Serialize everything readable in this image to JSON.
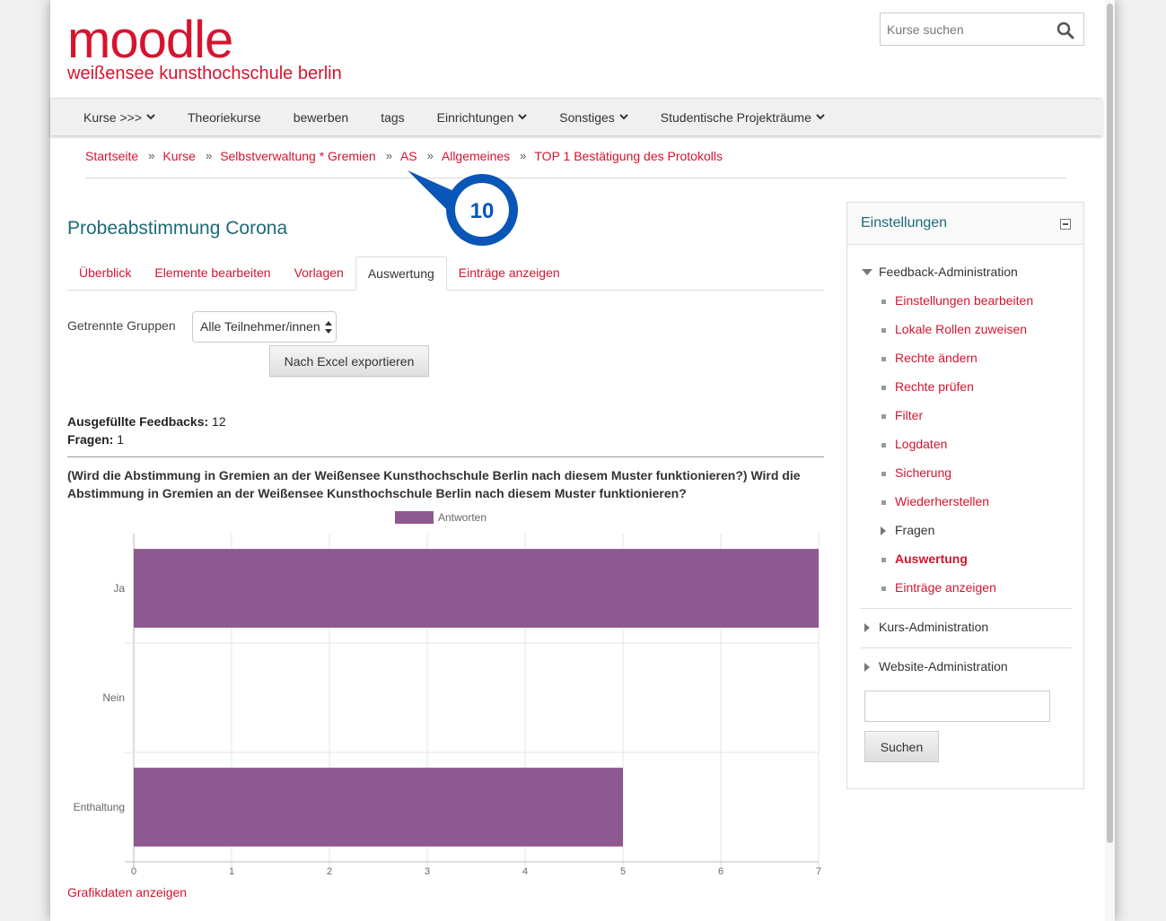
{
  "header": {
    "logo_word": "moodle",
    "logo_subtitle": "weißensee kunsthochschule berlin",
    "search_placeholder": "Kurse suchen"
  },
  "nav": {
    "items": [
      {
        "label": "Kurse >>>",
        "dropdown": true
      },
      {
        "label": "Theoriekurse",
        "dropdown": false
      },
      {
        "label": "bewerben",
        "dropdown": false
      },
      {
        "label": "tags",
        "dropdown": false
      },
      {
        "label": "Einrichtungen",
        "dropdown": true
      },
      {
        "label": "Sonstiges",
        "dropdown": true
      },
      {
        "label": "Studentische Projekträume",
        "dropdown": true
      }
    ]
  },
  "breadcrumb": [
    "Startseite",
    "Kurse",
    "Selbstverwaltung * Gremien",
    "AS",
    "Allgemeines",
    "TOP 1 Bestätigung des Protokolls"
  ],
  "callout": {
    "number": "10"
  },
  "main": {
    "title": "Probeabstimmung Corona",
    "tabs": [
      {
        "label": "Überblick",
        "active": false
      },
      {
        "label": "Elemente bearbeiten",
        "active": false
      },
      {
        "label": "Vorlagen",
        "active": false
      },
      {
        "label": "Auswertung",
        "active": true
      },
      {
        "label": "Einträge anzeigen",
        "active": false
      }
    ],
    "group_label": "Getrennte Gruppen",
    "group_select_value": "Alle Teilnehmer/innen",
    "export_label": "Nach Excel exportieren",
    "feedbacks_label": "Ausgefüllte Feedbacks:",
    "feedbacks_value": "12",
    "questions_label": "Fragen:",
    "questions_value": "1",
    "question_text": "(Wird die Abstimmung in Gremien an der Weißensee Kunsthochschule Berlin nach diesem Muster funktionieren?) Wird die Abstimmung in Gremien an der Weißensee Kunsthochschule Berlin nach diesem Muster funktionieren?",
    "show_data_link": "Grafikdaten anzeigen"
  },
  "chart_data": {
    "type": "bar",
    "orientation": "horizontal",
    "categories": [
      "Ja",
      "Nein",
      "Enthaltung"
    ],
    "series": [
      {
        "name": "Antworten",
        "values": [
          7,
          0,
          5
        ],
        "color": "#8e5890"
      }
    ],
    "xlim": [
      0,
      7
    ],
    "x_ticks": [
      0,
      1,
      2,
      3,
      4,
      5,
      6,
      7
    ],
    "legend_position": "top",
    "grid": true
  },
  "sidebar": {
    "title": "Einstellungen",
    "feedback_admin_label": "Feedback-Administration",
    "feedback_items": [
      {
        "label": "Einstellungen bearbeiten",
        "type": "link"
      },
      {
        "label": "Lokale Rollen zuweisen",
        "type": "link"
      },
      {
        "label": "Rechte ändern",
        "type": "link"
      },
      {
        "label": "Rechte prüfen",
        "type": "link"
      },
      {
        "label": "Filter",
        "type": "link"
      },
      {
        "label": "Logdaten",
        "type": "link"
      },
      {
        "label": "Sicherung",
        "type": "link"
      },
      {
        "label": "Wiederherstellen",
        "type": "link"
      },
      {
        "label": "Fragen",
        "type": "branch"
      },
      {
        "label": "Auswertung",
        "type": "current"
      },
      {
        "label": "Einträge anzeigen",
        "type": "link"
      }
    ],
    "course_admin_label": "Kurs-Administration",
    "site_admin_label": "Website-Administration",
    "search_button_label": "Suchen"
  }
}
